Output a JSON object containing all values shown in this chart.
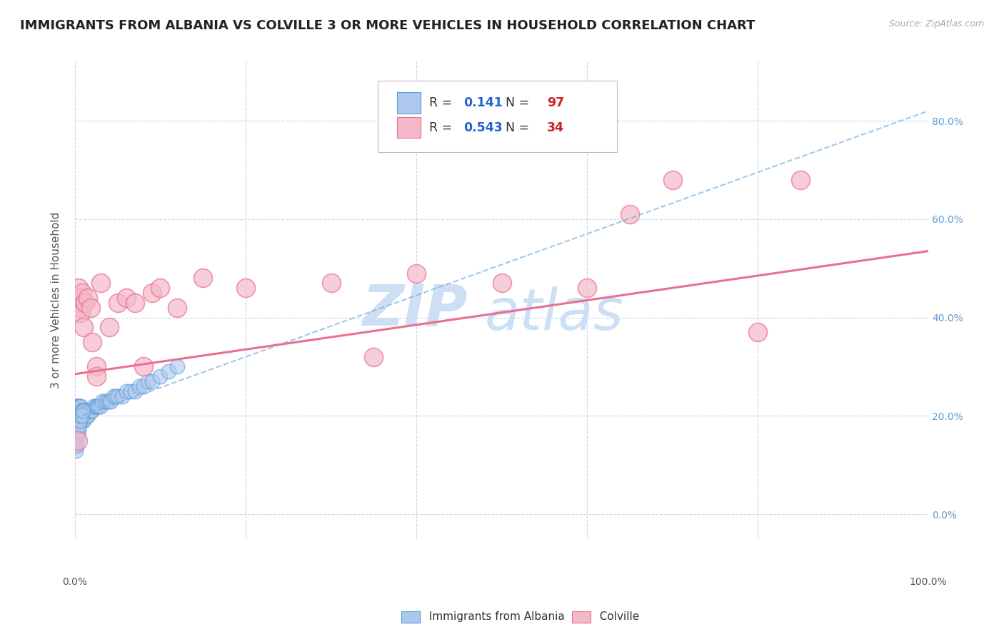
{
  "title": "IMMIGRANTS FROM ALBANIA VS COLVILLE 3 OR MORE VEHICLES IN HOUSEHOLD CORRELATION CHART",
  "source_text": "Source: ZipAtlas.com",
  "ylabel": "3 or more Vehicles in Household",
  "xlim": [
    0.0,
    1.0
  ],
  "ylim": [
    -0.05,
    0.92
  ],
  "yticks": [
    0.0,
    0.2,
    0.4,
    0.6,
    0.8
  ],
  "ytick_labels": [
    "0.0%",
    "20.0%",
    "40.0%",
    "60.0%",
    "80.0%"
  ],
  "xticks": [
    0.0,
    0.2,
    0.4,
    0.6,
    0.8,
    1.0
  ],
  "xtick_labels": [
    "0.0%",
    "",
    "",
    "",
    "",
    "100.0%"
  ],
  "legend_R1": "0.141",
  "legend_N1": "97",
  "legend_R2": "0.543",
  "legend_N2": "34",
  "legend_label1": "Immigrants from Albania",
  "legend_label2": "Colville",
  "blue_color": "#adc8ee",
  "blue_edge_color": "#5b9bd5",
  "pink_color": "#f5b8cb",
  "pink_edge_color": "#e8718e",
  "blue_line_color": "#7ab0e0",
  "pink_line_color": "#e87090",
  "watermark_color": "#ccdff5",
  "title_fontsize": 13,
  "axis_fontsize": 11,
  "tick_fontsize": 10,
  "background_color": "#ffffff",
  "grid_color": "#c8d8e8",
  "blue_line_x0": 0.0,
  "blue_line_y0": 0.195,
  "blue_line_x1": 1.0,
  "blue_line_y1": 0.82,
  "pink_line_x0": 0.0,
  "pink_line_y0": 0.285,
  "pink_line_x1": 1.0,
  "pink_line_y1": 0.535,
  "blue_scatter_x": [
    0.001,
    0.001,
    0.001,
    0.002,
    0.002,
    0.002,
    0.002,
    0.003,
    0.003,
    0.003,
    0.003,
    0.003,
    0.003,
    0.004,
    0.004,
    0.004,
    0.004,
    0.004,
    0.005,
    0.005,
    0.005,
    0.005,
    0.006,
    0.006,
    0.006,
    0.006,
    0.007,
    0.007,
    0.007,
    0.007,
    0.008,
    0.008,
    0.008,
    0.009,
    0.009,
    0.009,
    0.01,
    0.01,
    0.01,
    0.011,
    0.011,
    0.012,
    0.012,
    0.013,
    0.013,
    0.014,
    0.015,
    0.015,
    0.016,
    0.017,
    0.018,
    0.019,
    0.02,
    0.022,
    0.024,
    0.025,
    0.027,
    0.028,
    0.03,
    0.032,
    0.035,
    0.038,
    0.04,
    0.042,
    0.045,
    0.048,
    0.05,
    0.055,
    0.06,
    0.065,
    0.07,
    0.075,
    0.08,
    0.085,
    0.09,
    0.1,
    0.11,
    0.12,
    0.001,
    0.001,
    0.001,
    0.001,
    0.001,
    0.002,
    0.002,
    0.002,
    0.003,
    0.003,
    0.004,
    0.004,
    0.005,
    0.005,
    0.006,
    0.006,
    0.007,
    0.008,
    0.009
  ],
  "blue_scatter_y": [
    0.2,
    0.18,
    0.22,
    0.19,
    0.21,
    0.2,
    0.22,
    0.18,
    0.2,
    0.21,
    0.19,
    0.22,
    0.2,
    0.19,
    0.21,
    0.2,
    0.22,
    0.18,
    0.2,
    0.19,
    0.21,
    0.22,
    0.2,
    0.19,
    0.21,
    0.22,
    0.2,
    0.19,
    0.21,
    0.22,
    0.2,
    0.19,
    0.21,
    0.2,
    0.19,
    0.21,
    0.2,
    0.19,
    0.21,
    0.2,
    0.21,
    0.2,
    0.21,
    0.2,
    0.21,
    0.2,
    0.21,
    0.2,
    0.21,
    0.21,
    0.21,
    0.21,
    0.21,
    0.22,
    0.22,
    0.22,
    0.22,
    0.22,
    0.22,
    0.23,
    0.23,
    0.23,
    0.23,
    0.23,
    0.24,
    0.24,
    0.24,
    0.24,
    0.25,
    0.25,
    0.25,
    0.26,
    0.26,
    0.27,
    0.27,
    0.28,
    0.29,
    0.3,
    0.16,
    0.17,
    0.15,
    0.14,
    0.13,
    0.16,
    0.15,
    0.14,
    0.17,
    0.16,
    0.18,
    0.17,
    0.19,
    0.18,
    0.2,
    0.19,
    0.2,
    0.2,
    0.21
  ],
  "pink_scatter_x": [
    0.002,
    0.004,
    0.005,
    0.006,
    0.007,
    0.008,
    0.01,
    0.012,
    0.015,
    0.018,
    0.02,
    0.025,
    0.03,
    0.04,
    0.05,
    0.06,
    0.07,
    0.08,
    0.09,
    0.1,
    0.12,
    0.15,
    0.2,
    0.3,
    0.35,
    0.4,
    0.5,
    0.6,
    0.65,
    0.7,
    0.8,
    0.85,
    0.003,
    0.025
  ],
  "pink_scatter_y": [
    0.43,
    0.46,
    0.42,
    0.44,
    0.41,
    0.45,
    0.38,
    0.43,
    0.44,
    0.42,
    0.35,
    0.3,
    0.47,
    0.38,
    0.43,
    0.44,
    0.43,
    0.3,
    0.45,
    0.46,
    0.42,
    0.48,
    0.46,
    0.47,
    0.32,
    0.49,
    0.47,
    0.46,
    0.61,
    0.68,
    0.37,
    0.68,
    0.15,
    0.28
  ]
}
